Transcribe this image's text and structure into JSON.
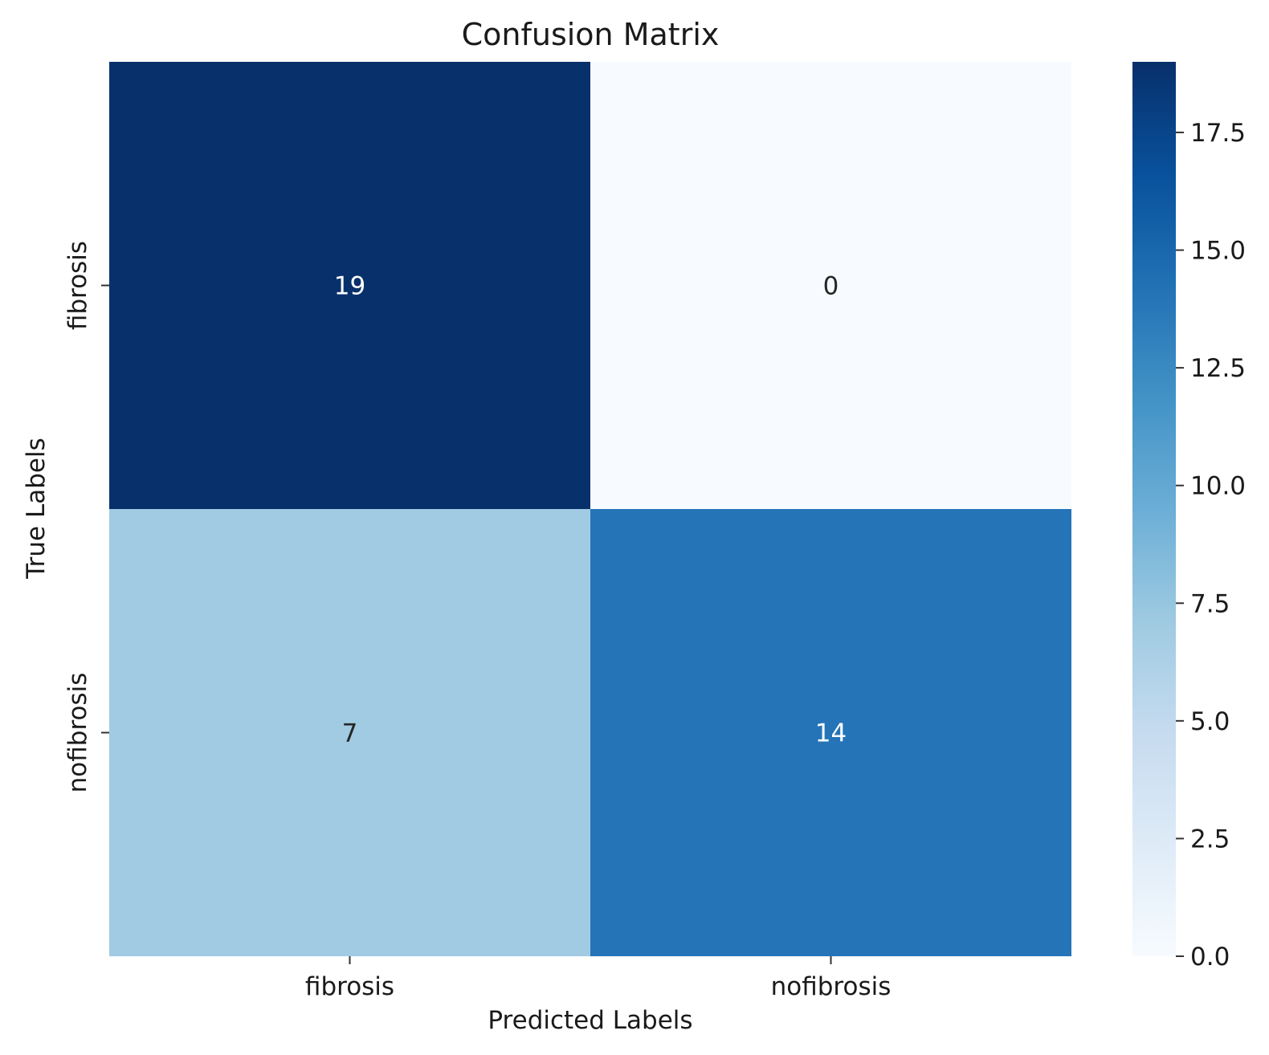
{
  "chart_data": {
    "type": "heatmap",
    "title": "Confusion Matrix",
    "xlabel": "Predicted Labels",
    "ylabel": "True Labels",
    "x_categories": [
      "fibrosis",
      "nofibrosis"
    ],
    "y_categories": [
      "fibrosis",
      "nofibrosis"
    ],
    "values": [
      [
        19,
        0
      ],
      [
        7,
        14
      ]
    ],
    "colormap": "Blues",
    "colorbar": {
      "min": 0,
      "max": 19,
      "ticks": [
        0.0,
        2.5,
        5.0,
        7.5,
        10.0,
        12.5,
        15.0,
        17.5
      ],
      "tick_labels": [
        "0.0",
        "2.5",
        "5.0",
        "7.5",
        "10.0",
        "12.5",
        "15.0",
        "17.5"
      ]
    },
    "annotation_colors": {
      "dark_text": "#262626",
      "light_text": "#ffffff"
    },
    "legend": "colorbar right"
  }
}
